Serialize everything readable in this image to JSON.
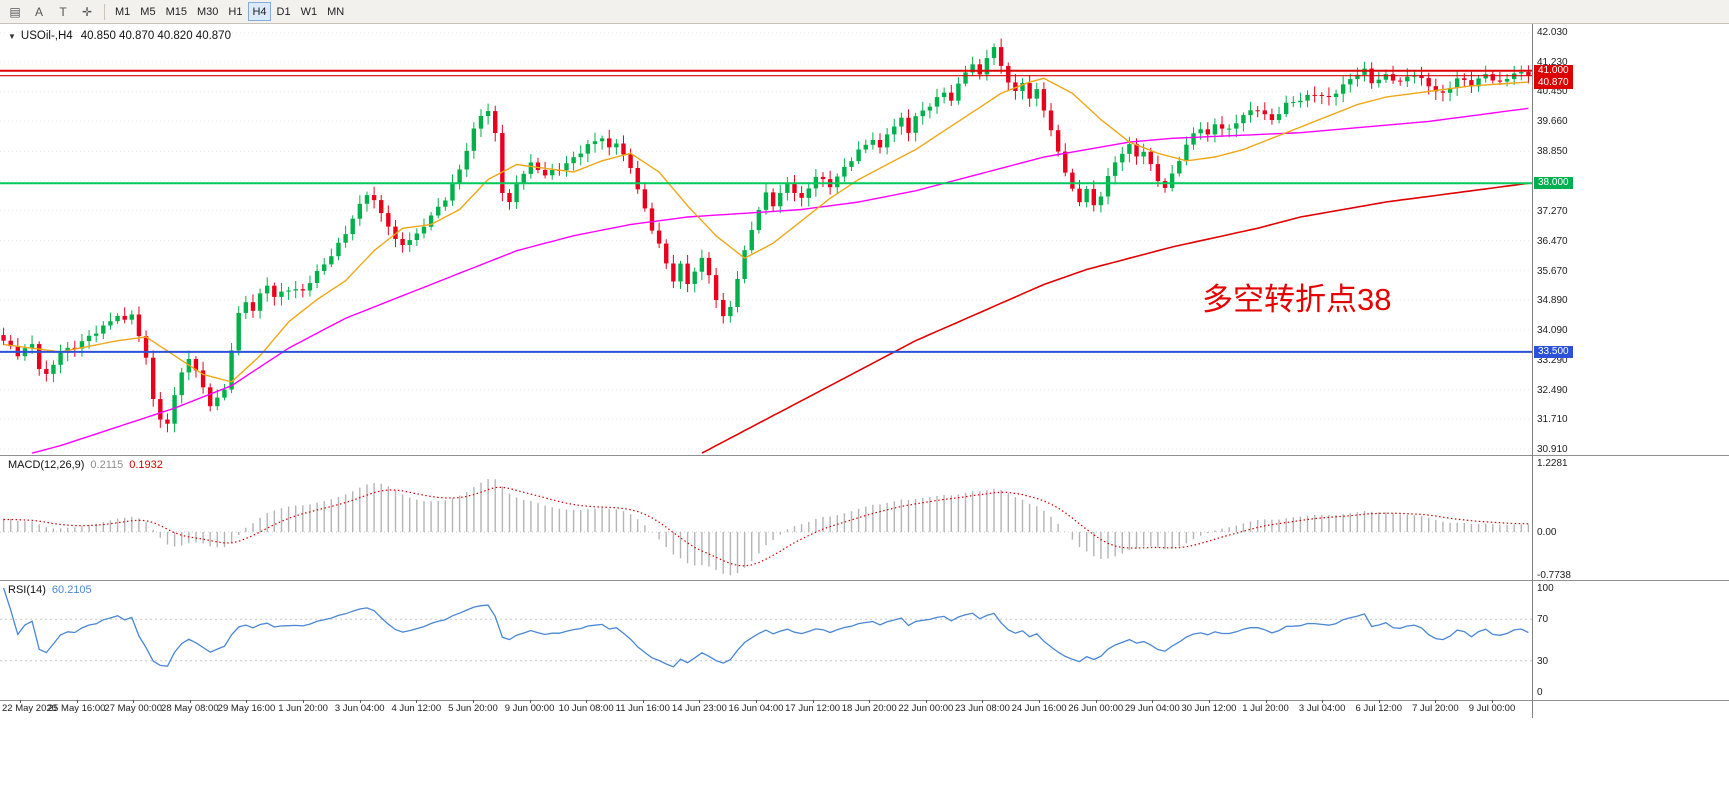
{
  "toolbar": {
    "icons": [
      {
        "name": "chart-list-icon",
        "glyph": "▤"
      },
      {
        "name": "annotate-a-icon",
        "glyph": "A"
      },
      {
        "name": "text-tool-icon",
        "glyph": "T"
      },
      {
        "name": "crosshair-icon",
        "glyph": "✛"
      }
    ],
    "timeframes": [
      {
        "label": "M1"
      },
      {
        "label": "M5"
      },
      {
        "label": "M15"
      },
      {
        "label": "M30"
      },
      {
        "label": "H1"
      },
      {
        "label": "H4",
        "active": true
      },
      {
        "label": "D1"
      },
      {
        "label": "W1"
      },
      {
        "label": "MN"
      }
    ]
  },
  "chart": {
    "expand_icon": "▼",
    "symbol_title": "USOil-,H4",
    "ohlc": "40.850 40.870 40.820 40.870",
    "annotation": {
      "text": "多空转折点38",
      "color": "#e60000"
    },
    "badges": [
      {
        "label": "41.000",
        "price": 41.0,
        "color": "#dd0000"
      },
      {
        "label": "40.870",
        "price": 40.87,
        "color": "#dd0000"
      },
      {
        "label": "38.000",
        "price": 38.0,
        "color": "#00b050"
      },
      {
        "label": "33.500",
        "price": 33.5,
        "color": "#2d50d8"
      }
    ],
    "hlines": [
      {
        "price": 41.0,
        "color": "#dd0000",
        "width": 2
      },
      {
        "price": 40.87,
        "color": "#dd0000",
        "width": 1.2
      },
      {
        "price": 38.0,
        "color": "#00c85a",
        "width": 2
      },
      {
        "price": 33.5,
        "color": "#2d50d8",
        "width": 2
      }
    ],
    "price_ticks": [
      "42.030",
      "41.230",
      "40.450",
      "39.660",
      "38.850",
      "38.060",
      "37.270",
      "36.470",
      "35.670",
      "34.890",
      "34.090",
      "33.290",
      "32.490",
      "31.710",
      "30.910"
    ]
  },
  "macd": {
    "label": "MACD(12,26,9)",
    "hist_value": "0.2115",
    "signal_value": "0.1932",
    "axis_labels": [
      {
        "label": "1.2281",
        "value": 1.2281
      },
      {
        "label": "0.00",
        "value": 0
      },
      {
        "label": "-0.7738",
        "value": -0.7738
      }
    ]
  },
  "rsi": {
    "label": "RSI(14)",
    "value": "60.2105",
    "levels": [
      70,
      30
    ],
    "axis_labels": [
      {
        "label": "100",
        "value": 100
      },
      {
        "label": "70",
        "value": 70
      },
      {
        "label": "30",
        "value": 30
      },
      {
        "label": "0",
        "value": 0
      }
    ]
  },
  "time_axis": {
    "labels": [
      "22 May 2020",
      "25 May 16:00",
      "27 May 00:00",
      "28 May 08:00",
      "29 May 16:00",
      "1 Jun 20:00",
      "3 Jun 04:00",
      "4 Jun 12:00",
      "5 Jun 20:00",
      "9 Jun 00:00",
      "10 Jun 08:00",
      "11 Jun 16:00",
      "14 Jun 23:00",
      "16 Jun 04:00",
      "17 Jun 12:00",
      "18 Jun 20:00",
      "22 Jun 00:00",
      "23 Jun 08:00",
      "24 Jun 16:00",
      "26 Jun 00:00",
      "29 Jun 04:00",
      "30 Jun 12:00",
      "1 Jul 20:00",
      "3 Jul 04:00",
      "6 Jul 12:00",
      "7 Jul 20:00",
      "9 Jul 00:00"
    ]
  },
  "chart_data": {
    "type": "candlestick",
    "symbol": "USOil",
    "timeframe": "H4",
    "n_candles": 215,
    "price_range": [
      30.75,
      42.25
    ],
    "last_ohlc": {
      "open": 40.85,
      "high": 40.87,
      "low": 40.82,
      "close": 40.87
    },
    "close_keypoints": [
      [
        0,
        33.8
      ],
      [
        2,
        33.4
      ],
      [
        4,
        33.7
      ],
      [
        5,
        33.1
      ],
      [
        6,
        32.9
      ],
      [
        8,
        33.5
      ],
      [
        10,
        33.6
      ],
      [
        12,
        33.9
      ],
      [
        14,
        34.2
      ],
      [
        16,
        34.5
      ],
      [
        17,
        34.3
      ],
      [
        18,
        34.5
      ],
      [
        19,
        33.9
      ],
      [
        20,
        33.3
      ],
      [
        21,
        32.3
      ],
      [
        22,
        31.7
      ],
      [
        23,
        31.6
      ],
      [
        24,
        32.4
      ],
      [
        25,
        32.9
      ],
      [
        26,
        33.3
      ],
      [
        27,
        33.0
      ],
      [
        28,
        32.5
      ],
      [
        29,
        32.1
      ],
      [
        30,
        32.3
      ],
      [
        31,
        32.5
      ],
      [
        32,
        33.6
      ],
      [
        33,
        34.5
      ],
      [
        34,
        34.8
      ],
      [
        35,
        34.6
      ],
      [
        36,
        35.0
      ],
      [
        37,
        35.3
      ],
      [
        38,
        35.0
      ],
      [
        40,
        35.2
      ],
      [
        42,
        35.1
      ],
      [
        44,
        35.6
      ],
      [
        46,
        36.1
      ],
      [
        48,
        36.7
      ],
      [
        50,
        37.4
      ],
      [
        51,
        37.7
      ],
      [
        52,
        37.5
      ],
      [
        54,
        36.9
      ],
      [
        55,
        36.5
      ],
      [
        56,
        36.4
      ],
      [
        58,
        36.6
      ],
      [
        60,
        37.1
      ],
      [
        62,
        37.6
      ],
      [
        63,
        38.0
      ],
      [
        64,
        38.4
      ],
      [
        65,
        38.9
      ],
      [
        66,
        39.4
      ],
      [
        67,
        39.8
      ],
      [
        68,
        39.9
      ],
      [
        69,
        39.3
      ],
      [
        70,
        37.8
      ],
      [
        71,
        37.5
      ],
      [
        72,
        38.0
      ],
      [
        73,
        38.3
      ],
      [
        74,
        38.5
      ],
      [
        76,
        38.2
      ],
      [
        78,
        38.4
      ],
      [
        80,
        38.7
      ],
      [
        82,
        39.0
      ],
      [
        84,
        39.2
      ],
      [
        85,
        38.9
      ],
      [
        86,
        39.1
      ],
      [
        87,
        38.8
      ],
      [
        88,
        38.4
      ],
      [
        89,
        37.9
      ],
      [
        90,
        37.3
      ],
      [
        91,
        36.7
      ],
      [
        92,
        36.4
      ],
      [
        93,
        35.8
      ],
      [
        94,
        35.4
      ],
      [
        95,
        35.9
      ],
      [
        96,
        35.3
      ],
      [
        97,
        35.7
      ],
      [
        98,
        36.0
      ],
      [
        99,
        35.5
      ],
      [
        100,
        34.9
      ],
      [
        101,
        34.4
      ],
      [
        102,
        34.7
      ],
      [
        103,
        35.5
      ],
      [
        104,
        36.2
      ],
      [
        105,
        36.8
      ],
      [
        106,
        37.3
      ],
      [
        107,
        37.7
      ],
      [
        108,
        37.4
      ],
      [
        110,
        38.0
      ],
      [
        112,
        37.6
      ],
      [
        114,
        38.2
      ],
      [
        116,
        37.9
      ],
      [
        118,
        38.4
      ],
      [
        120,
        38.9
      ],
      [
        122,
        39.2
      ],
      [
        123,
        38.9
      ],
      [
        124,
        39.3
      ],
      [
        126,
        39.7
      ],
      [
        127,
        39.4
      ],
      [
        128,
        39.8
      ],
      [
        130,
        40.1
      ],
      [
        132,
        40.4
      ],
      [
        133,
        40.2
      ],
      [
        134,
        40.6
      ],
      [
        135,
        41.0
      ],
      [
        136,
        41.2
      ],
      [
        137,
        40.9
      ],
      [
        138,
        41.4
      ],
      [
        139,
        41.6
      ],
      [
        140,
        41.1
      ],
      [
        141,
        40.7
      ],
      [
        142,
        40.4
      ],
      [
        143,
        40.7
      ],
      [
        144,
        40.3
      ],
      [
        145,
        40.5
      ],
      [
        146,
        40.0
      ],
      [
        147,
        39.4
      ],
      [
        148,
        38.8
      ],
      [
        149,
        38.3
      ],
      [
        150,
        37.8
      ],
      [
        151,
        37.5
      ],
      [
        152,
        37.9
      ],
      [
        153,
        37.4
      ],
      [
        154,
        37.7
      ],
      [
        155,
        38.2
      ],
      [
        156,
        38.5
      ],
      [
        157,
        38.8
      ],
      [
        158,
        39.0
      ],
      [
        159,
        38.7
      ],
      [
        160,
        38.9
      ],
      [
        161,
        38.5
      ],
      [
        162,
        38.1
      ],
      [
        163,
        37.9
      ],
      [
        164,
        38.2
      ],
      [
        165,
        38.6
      ],
      [
        166,
        39.0
      ],
      [
        167,
        39.3
      ],
      [
        168,
        39.5
      ],
      [
        169,
        39.3
      ],
      [
        170,
        39.6
      ],
      [
        172,
        39.4
      ],
      [
        174,
        39.8
      ],
      [
        176,
        40.0
      ],
      [
        178,
        39.7
      ],
      [
        180,
        40.1
      ],
      [
        182,
        40.2
      ],
      [
        184,
        40.4
      ],
      [
        186,
        40.3
      ],
      [
        188,
        40.6
      ],
      [
        190,
        40.9
      ],
      [
        191,
        41.0
      ],
      [
        192,
        40.7
      ],
      [
        194,
        40.9
      ],
      [
        196,
        40.7
      ],
      [
        198,
        40.9
      ],
      [
        200,
        40.6
      ],
      [
        202,
        40.4
      ],
      [
        204,
        40.8
      ],
      [
        206,
        40.6
      ],
      [
        208,
        40.9
      ],
      [
        210,
        40.7
      ],
      [
        212,
        40.95
      ],
      [
        214,
        40.87
      ]
    ],
    "ma_fast_keypoints": [
      [
        0,
        33.7
      ],
      [
        8,
        33.5
      ],
      [
        16,
        33.8
      ],
      [
        20,
        33.9
      ],
      [
        24,
        33.4
      ],
      [
        28,
        32.9
      ],
      [
        32,
        32.7
      ],
      [
        36,
        33.4
      ],
      [
        40,
        34.3
      ],
      [
        44,
        34.9
      ],
      [
        48,
        35.4
      ],
      [
        52,
        36.2
      ],
      [
        56,
        36.8
      ],
      [
        60,
        36.9
      ],
      [
        64,
        37.3
      ],
      [
        68,
        38.1
      ],
      [
        72,
        38.5
      ],
      [
        76,
        38.4
      ],
      [
        80,
        38.3
      ],
      [
        84,
        38.6
      ],
      [
        88,
        38.8
      ],
      [
        92,
        38.3
      ],
      [
        96,
        37.4
      ],
      [
        100,
        36.6
      ],
      [
        104,
        36.0
      ],
      [
        108,
        36.4
      ],
      [
        112,
        37.0
      ],
      [
        116,
        37.6
      ],
      [
        120,
        38.1
      ],
      [
        124,
        38.5
      ],
      [
        128,
        38.9
      ],
      [
        132,
        39.4
      ],
      [
        136,
        39.9
      ],
      [
        140,
        40.4
      ],
      [
        144,
        40.7
      ],
      [
        146,
        40.8
      ],
      [
        150,
        40.4
      ],
      [
        154,
        39.7
      ],
      [
        158,
        39.1
      ],
      [
        162,
        38.8
      ],
      [
        166,
        38.6
      ],
      [
        170,
        38.7
      ],
      [
        174,
        38.9
      ],
      [
        178,
        39.2
      ],
      [
        182,
        39.5
      ],
      [
        186,
        39.8
      ],
      [
        190,
        40.1
      ],
      [
        194,
        40.3
      ],
      [
        198,
        40.4
      ],
      [
        202,
        40.5
      ],
      [
        206,
        40.6
      ],
      [
        210,
        40.65
      ],
      [
        214,
        40.7
      ]
    ],
    "ma_mid_keypoints": [
      [
        4,
        30.8
      ],
      [
        8,
        31.0
      ],
      [
        16,
        31.5
      ],
      [
        24,
        32.0
      ],
      [
        32,
        32.6
      ],
      [
        40,
        33.6
      ],
      [
        48,
        34.4
      ],
      [
        56,
        35.0
      ],
      [
        64,
        35.6
      ],
      [
        72,
        36.2
      ],
      [
        80,
        36.6
      ],
      [
        88,
        36.9
      ],
      [
        96,
        37.1
      ],
      [
        104,
        37.2
      ],
      [
        112,
        37.3
      ],
      [
        120,
        37.5
      ],
      [
        128,
        37.8
      ],
      [
        134,
        38.1
      ],
      [
        140,
        38.4
      ],
      [
        146,
        38.7
      ],
      [
        152,
        38.9
      ],
      [
        158,
        39.1
      ],
      [
        164,
        39.2
      ],
      [
        170,
        39.25
      ],
      [
        176,
        39.3
      ],
      [
        182,
        39.35
      ],
      [
        188,
        39.45
      ],
      [
        194,
        39.55
      ],
      [
        200,
        39.65
      ],
      [
        206,
        39.8
      ],
      [
        210,
        39.9
      ],
      [
        214,
        40.0
      ]
    ],
    "ma_slow_keypoints": [
      [
        98,
        30.8
      ],
      [
        104,
        31.4
      ],
      [
        110,
        32.0
      ],
      [
        116,
        32.6
      ],
      [
        122,
        33.2
      ],
      [
        128,
        33.8
      ],
      [
        134,
        34.3
      ],
      [
        140,
        34.8
      ],
      [
        146,
        35.3
      ],
      [
        152,
        35.7
      ],
      [
        158,
        36.0
      ],
      [
        164,
        36.3
      ],
      [
        170,
        36.55
      ],
      [
        176,
        36.8
      ],
      [
        182,
        37.1
      ],
      [
        188,
        37.3
      ],
      [
        194,
        37.5
      ],
      [
        200,
        37.65
      ],
      [
        206,
        37.8
      ],
      [
        210,
        37.9
      ],
      [
        214,
        38.0
      ]
    ],
    "macd_axis_range": [
      -0.7738,
      1.2281
    ],
    "colors": {
      "up": "#00b04a",
      "down": "#e8001c",
      "ma_fast": "#efa718",
      "ma_mid": "#ff00ff",
      "ma_slow": "#e00000",
      "macd_hist": "#b4b4b4",
      "macd_signal": "#d40000",
      "rsi": "#4a87d4"
    }
  }
}
